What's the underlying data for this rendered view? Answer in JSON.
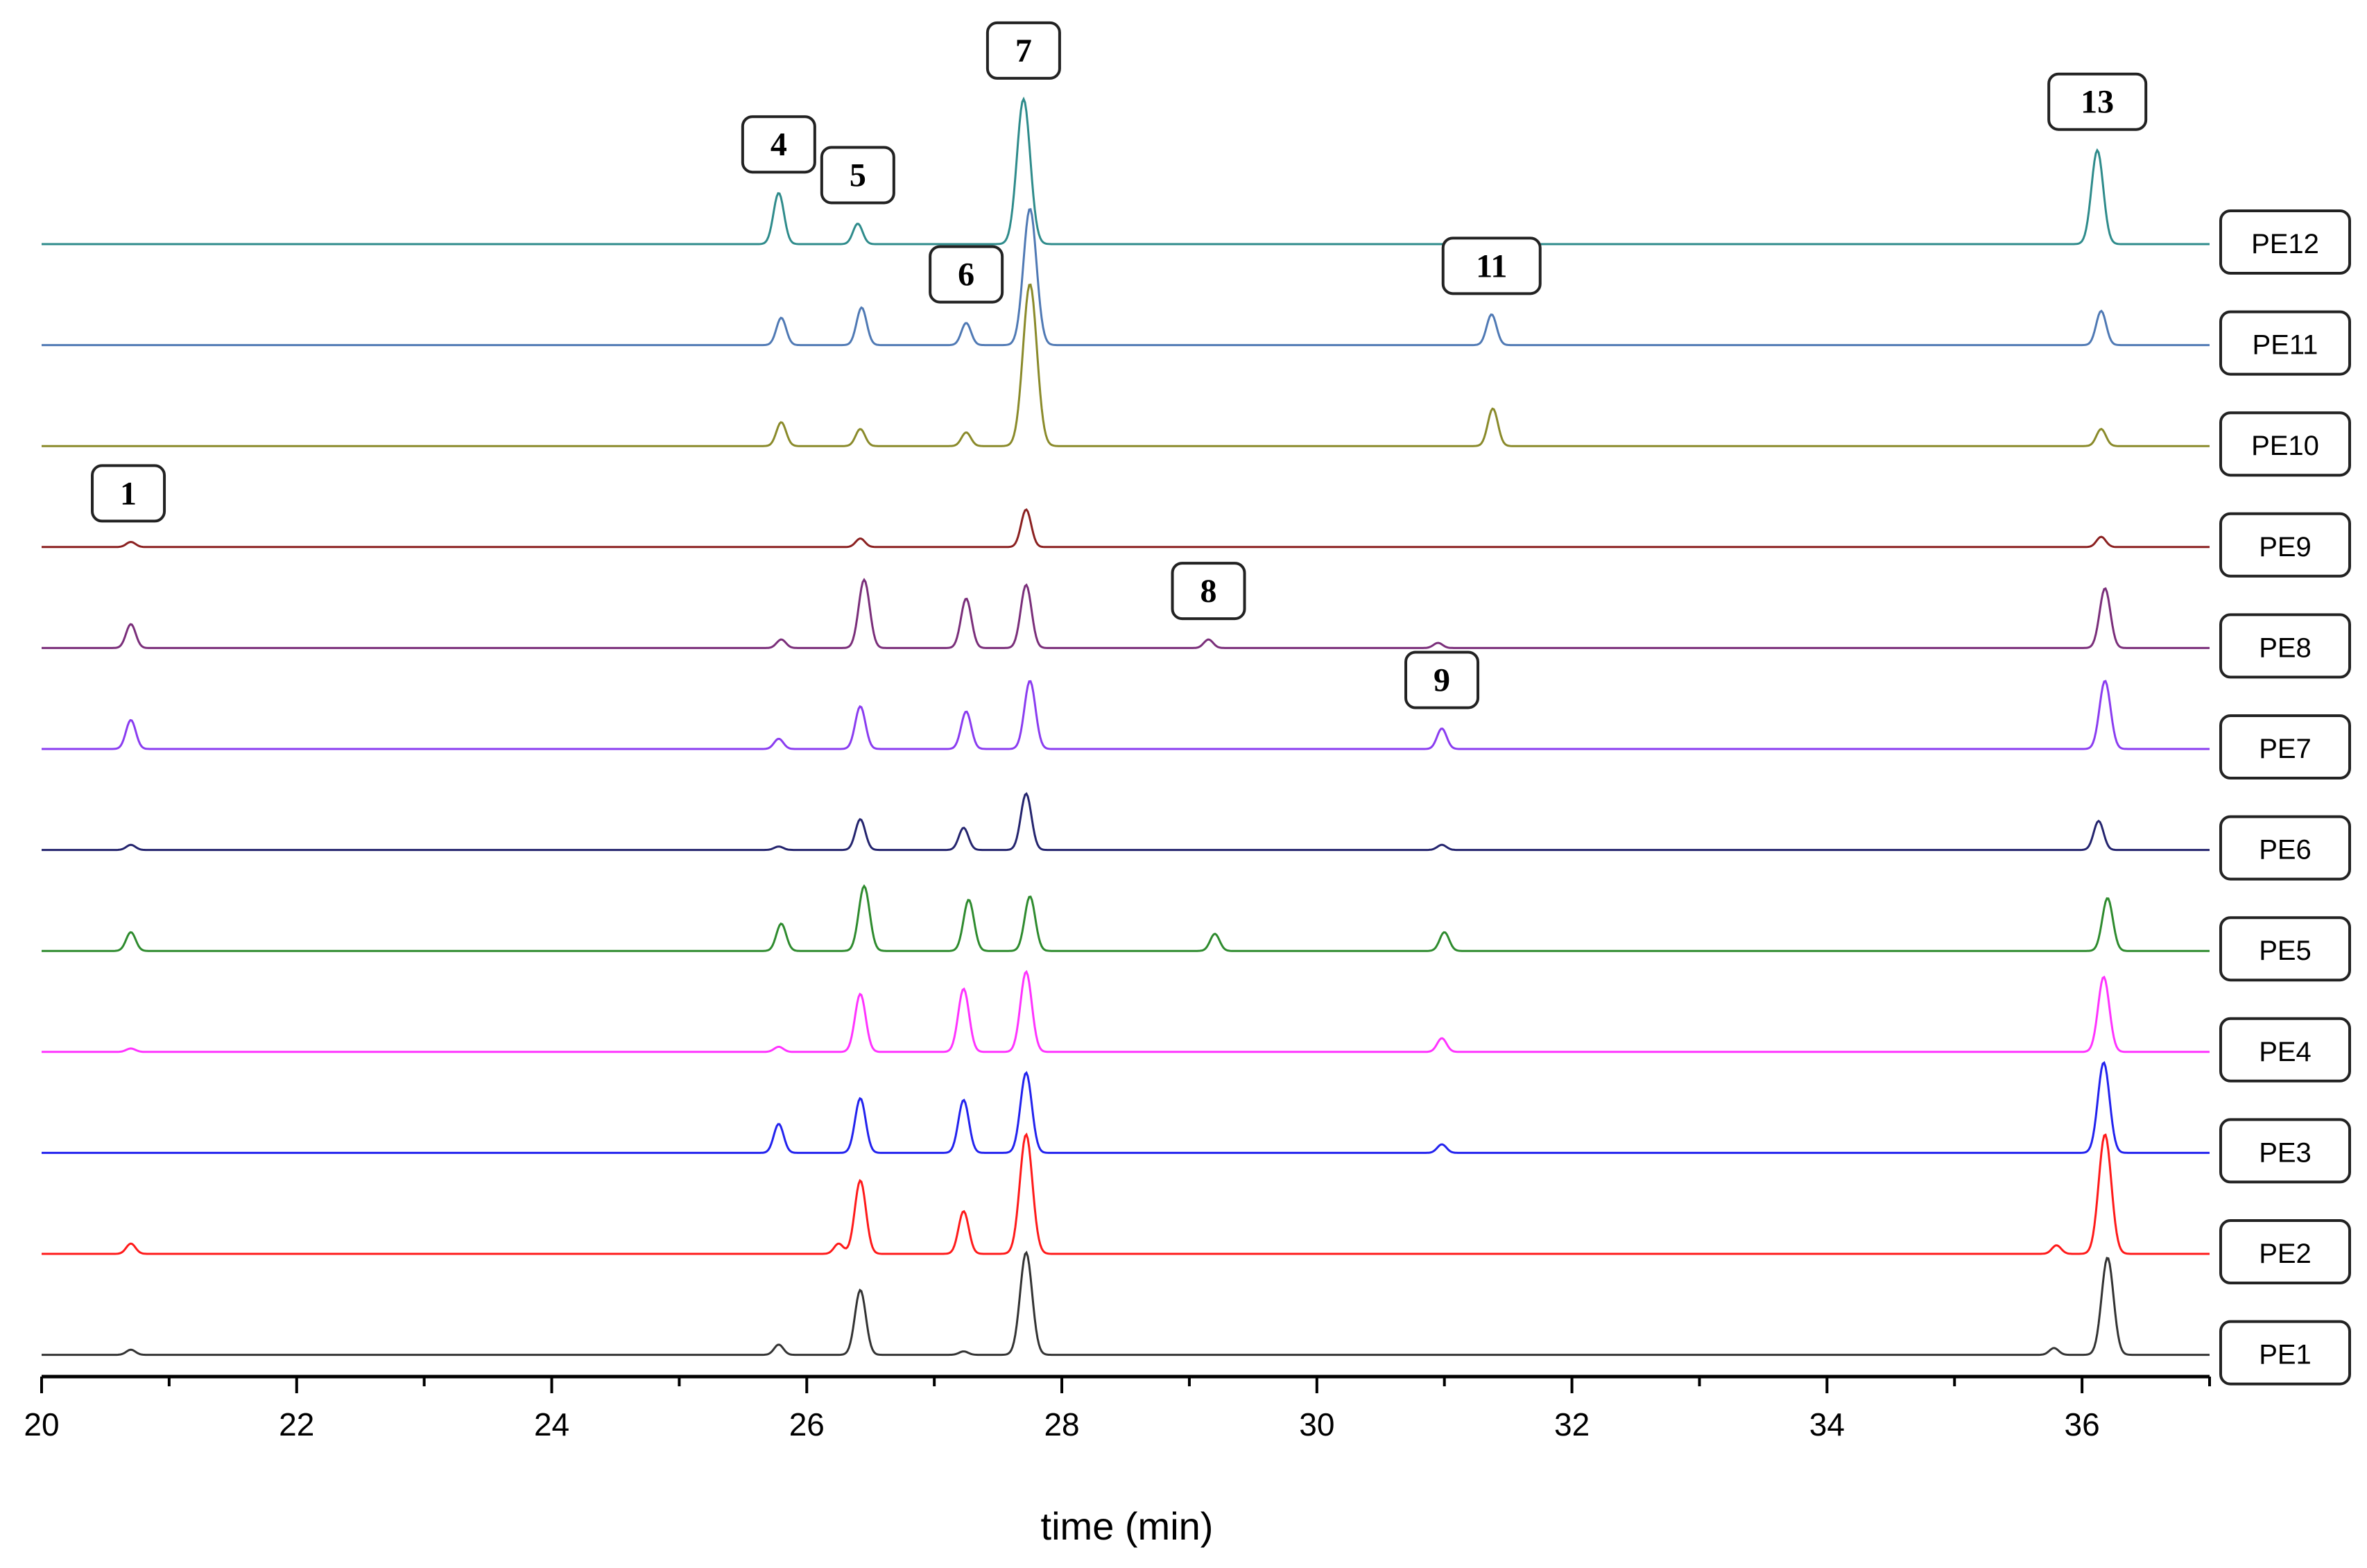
{
  "chart_data": {
    "type": "line",
    "title": "",
    "xlabel": "time (min)",
    "ylabel": "",
    "xlim": [
      20,
      37
    ],
    "x_ticks": [
      20,
      22,
      24,
      26,
      28,
      30,
      32,
      34,
      36
    ],
    "grid": false,
    "legend_position": "right",
    "series": [
      {
        "name": "PE12",
        "color": "#2e8b8b",
        "peaks": [
          [
            25.78,
            0.3
          ],
          [
            26.4,
            0.12
          ],
          [
            27.7,
            0.85
          ],
          [
            36.12,
            0.55
          ]
        ]
      },
      {
        "name": "PE11",
        "color": "#4f79b4",
        "peaks": [
          [
            25.8,
            0.16
          ],
          [
            26.43,
            0.22
          ],
          [
            27.25,
            0.13
          ],
          [
            27.75,
            0.8
          ],
          [
            31.37,
            0.18
          ],
          [
            36.15,
            0.2
          ]
        ]
      },
      {
        "name": "PE10",
        "color": "#8a8a2a",
        "peaks": [
          [
            25.8,
            0.14
          ],
          [
            26.42,
            0.1
          ],
          [
            27.25,
            0.08
          ],
          [
            27.75,
            0.95
          ],
          [
            31.38,
            0.22
          ],
          [
            36.15,
            0.1
          ]
        ]
      },
      {
        "name": "PE9",
        "color": "#8b2020",
        "peaks": [
          [
            20.7,
            0.03
          ],
          [
            26.42,
            0.05
          ],
          [
            27.72,
            0.22
          ],
          [
            36.15,
            0.06
          ]
        ]
      },
      {
        "name": "PE8",
        "color": "#7a2e7a",
        "peaks": [
          [
            20.7,
            0.14
          ],
          [
            25.8,
            0.05
          ],
          [
            26.45,
            0.4
          ],
          [
            27.25,
            0.29
          ],
          [
            27.72,
            0.37
          ],
          [
            29.15,
            0.05
          ],
          [
            30.95,
            0.03
          ],
          [
            36.18,
            0.35
          ]
        ]
      },
      {
        "name": "PE7",
        "color": "#8a3cf0",
        "peaks": [
          [
            20.7,
            0.17
          ],
          [
            25.78,
            0.06
          ],
          [
            26.42,
            0.25
          ],
          [
            27.25,
            0.22
          ],
          [
            27.75,
            0.4
          ],
          [
            30.98,
            0.12
          ],
          [
            36.18,
            0.4
          ]
        ]
      },
      {
        "name": "PE6",
        "color": "#24246e",
        "peaks": [
          [
            20.7,
            0.03
          ],
          [
            25.78,
            0.02
          ],
          [
            26.42,
            0.18
          ],
          [
            27.23,
            0.13
          ],
          [
            27.72,
            0.33
          ],
          [
            30.98,
            0.03
          ],
          [
            36.13,
            0.17
          ]
        ]
      },
      {
        "name": "PE5",
        "color": "#2e8b2e",
        "peaks": [
          [
            20.7,
            0.11
          ],
          [
            25.8,
            0.16
          ],
          [
            26.45,
            0.38
          ],
          [
            27.27,
            0.3
          ],
          [
            27.75,
            0.32
          ],
          [
            29.2,
            0.1
          ],
          [
            31.0,
            0.11
          ],
          [
            36.2,
            0.31
          ]
        ]
      },
      {
        "name": "PE4",
        "color": "#ff33ff",
        "peaks": [
          [
            20.7,
            0.02
          ],
          [
            25.78,
            0.03
          ],
          [
            26.42,
            0.34
          ],
          [
            27.23,
            0.37
          ],
          [
            27.72,
            0.47
          ],
          [
            30.98,
            0.08
          ],
          [
            36.17,
            0.44
          ]
        ]
      },
      {
        "name": "PE3",
        "color": "#2222ee",
        "peaks": [
          [
            25.78,
            0.17
          ],
          [
            26.42,
            0.32
          ],
          [
            27.23,
            0.31
          ],
          [
            27.72,
            0.47
          ],
          [
            30.98,
            0.05
          ],
          [
            36.17,
            0.53
          ]
        ]
      },
      {
        "name": "PE2",
        "color": "#ff1a1a",
        "peaks": [
          [
            20.7,
            0.06
          ],
          [
            26.25,
            0.06
          ],
          [
            26.42,
            0.43
          ],
          [
            27.23,
            0.25
          ],
          [
            27.72,
            0.7
          ],
          [
            35.8,
            0.05
          ],
          [
            36.18,
            0.7
          ]
        ]
      },
      {
        "name": "PE1",
        "color": "#333333",
        "peaks": [
          [
            20.7,
            0.03
          ],
          [
            25.78,
            0.06
          ],
          [
            26.42,
            0.38
          ],
          [
            27.23,
            0.02
          ],
          [
            27.72,
            0.6
          ],
          [
            35.78,
            0.04
          ],
          [
            36.2,
            0.57
          ]
        ]
      }
    ],
    "annotations": [
      {
        "label": "1",
        "x": 20.68,
        "series": "PE9"
      },
      {
        "label": "4",
        "x": 25.78,
        "series": "PE12"
      },
      {
        "label": "5",
        "x": 26.4,
        "series": "PE12"
      },
      {
        "label": "6",
        "x": 27.25,
        "series": "PE11"
      },
      {
        "label": "7",
        "x": 27.7,
        "series": "PE12"
      },
      {
        "label": "8",
        "x": 29.15,
        "series": "PE8"
      },
      {
        "label": "9",
        "x": 30.98,
        "series": "PE7"
      },
      {
        "label": "11",
        "x": 31.37,
        "series": "PE11"
      },
      {
        "label": "13",
        "x": 36.12,
        "series": "PE12"
      }
    ]
  }
}
